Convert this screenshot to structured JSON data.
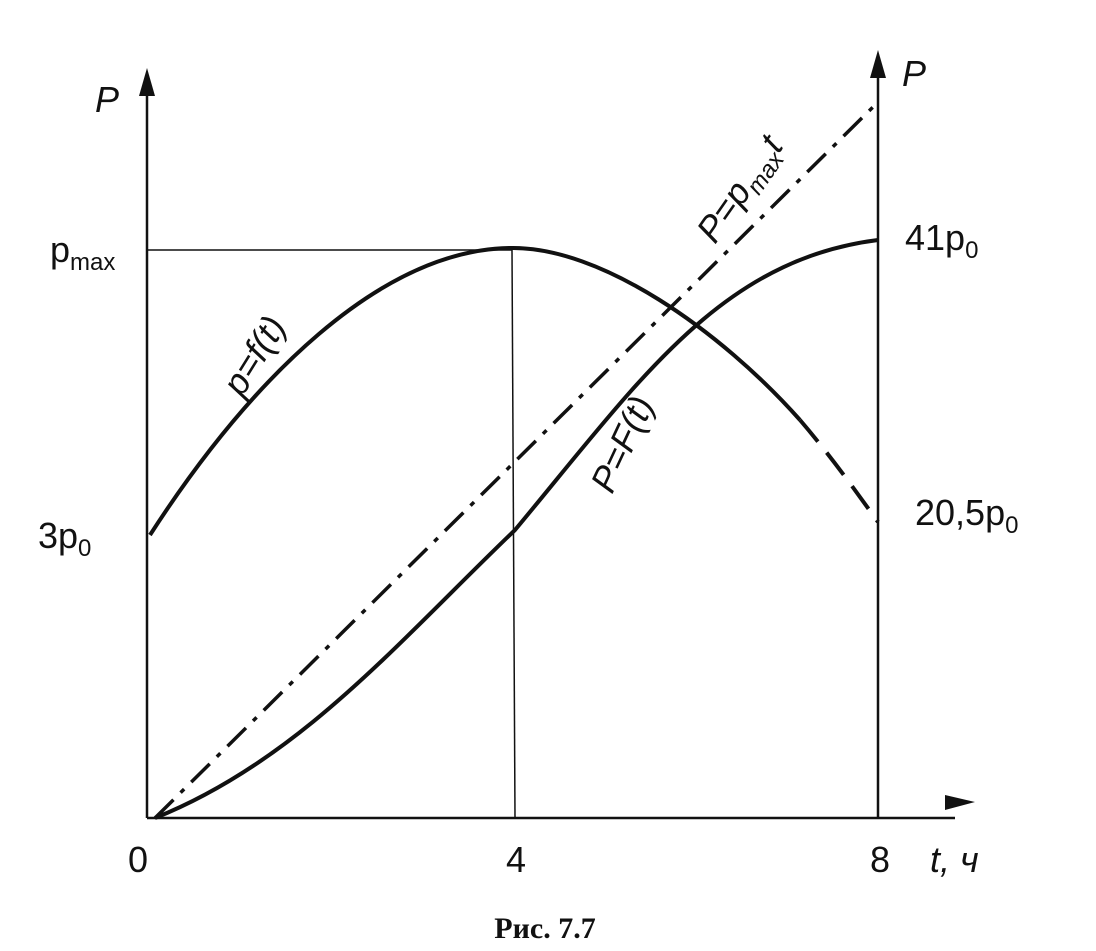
{
  "axes": {
    "y_left": "P",
    "y_right": "P",
    "x": "t, ч"
  },
  "x_ticks": [
    "0",
    "4",
    "8"
  ],
  "y_left_labels": [
    {
      "text": "p",
      "sub": "max"
    },
    {
      "text": "3p",
      "sub": "0"
    }
  ],
  "y_right_labels": [
    {
      "text": "41p",
      "sub": "0"
    },
    {
      "text": "20,5p",
      "sub": "0"
    }
  ],
  "curve_labels": [
    {
      "text": "p=f(t)"
    },
    {
      "text": "P=F(t)"
    },
    {
      "text": "P=p",
      "sub": "max",
      "after": "t"
    }
  ],
  "caption": "Рис. 7.7"
}
